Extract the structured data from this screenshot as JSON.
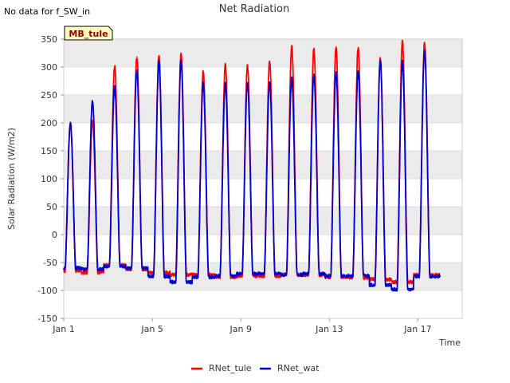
{
  "note": "No data for f_SW_in",
  "chart_data": {
    "type": "line",
    "title": "Net Radiation",
    "xlabel": "Time",
    "ylabel": "Solar Radiation (W/m2)",
    "site_label": "MB_tule",
    "xlim": [
      1,
      19
    ],
    "ylim": [
      -150,
      350
    ],
    "x_ticks": [
      1,
      5,
      9,
      13,
      17
    ],
    "x_tick_labels": [
      "Jan 1",
      "Jan 5",
      "Jan 9",
      "Jan 13",
      "Jan 17"
    ],
    "y_ticks": [
      -150,
      -100,
      -50,
      0,
      50,
      100,
      150,
      200,
      250,
      300,
      350
    ],
    "y_tick_labels": [
      "-150",
      "-100",
      "-50",
      "0",
      "50",
      "100",
      "150",
      "200",
      "250",
      "300",
      "350"
    ],
    "colors": {
      "RNet_tule": "#ff0000",
      "RNet_wat": "#0000cc",
      "band": "#ebebeb",
      "label_bg": "#ffffc0",
      "label_text": "#8b0000"
    },
    "series": [
      {
        "name": "RNet_tule",
        "days": [
          {
            "x": 1.3,
            "peak": 200,
            "night": -65
          },
          {
            "x": 2.3,
            "peak": 205,
            "night": -68
          },
          {
            "x": 3.3,
            "peak": 302,
            "night": -55
          },
          {
            "x": 4.3,
            "peak": 318,
            "night": -62
          },
          {
            "x": 5.3,
            "peak": 320,
            "night": -68
          },
          {
            "x": 6.3,
            "peak": 325,
            "night": -72
          },
          {
            "x": 7.3,
            "peak": 292,
            "night": -72
          },
          {
            "x": 8.3,
            "peak": 305,
            "night": -76
          },
          {
            "x": 9.3,
            "peak": 303,
            "night": -74
          },
          {
            "x": 10.3,
            "peak": 310,
            "night": -74
          },
          {
            "x": 11.3,
            "peak": 337,
            "night": -72
          },
          {
            "x": 12.3,
            "peak": 333,
            "night": -72
          },
          {
            "x": 13.3,
            "peak": 336,
            "night": -76
          },
          {
            "x": 14.3,
            "peak": 335,
            "night": -77
          },
          {
            "x": 15.3,
            "peak": 315,
            "night": -80
          },
          {
            "x": 16.3,
            "peak": 345,
            "night": -85
          },
          {
            "x": 17.3,
            "peak": 343,
            "night": -72
          }
        ],
        "end_x": 18.0
      },
      {
        "name": "RNet_wat",
        "days": [
          {
            "x": 1.3,
            "peak": 200,
            "night": -60
          },
          {
            "x": 2.3,
            "peak": 238,
            "night": -62
          },
          {
            "x": 3.3,
            "peak": 265,
            "night": -57
          },
          {
            "x": 4.3,
            "peak": 293,
            "night": -60
          },
          {
            "x": 5.3,
            "peak": 310,
            "night": -75
          },
          {
            "x": 6.3,
            "peak": 310,
            "night": -85
          },
          {
            "x": 7.3,
            "peak": 270,
            "night": -76
          },
          {
            "x": 8.3,
            "peak": 270,
            "night": -74
          },
          {
            "x": 9.3,
            "peak": 272,
            "night": -70
          },
          {
            "x": 10.3,
            "peak": 272,
            "night": -70
          },
          {
            "x": 11.3,
            "peak": 280,
            "night": -72
          },
          {
            "x": 12.3,
            "peak": 287,
            "night": -70
          },
          {
            "x": 13.3,
            "peak": 290,
            "night": -74
          },
          {
            "x": 14.3,
            "peak": 293,
            "night": -74
          },
          {
            "x": 15.3,
            "peak": 312,
            "night": -90
          },
          {
            "x": 16.3,
            "peak": 310,
            "night": -98
          },
          {
            "x": 17.3,
            "peak": 330,
            "night": -75
          }
        ],
        "end_x": 18.0
      }
    ],
    "legend": {
      "position": "bottom-center",
      "entries": [
        "RNet_tule",
        "RNet_wat"
      ]
    }
  }
}
